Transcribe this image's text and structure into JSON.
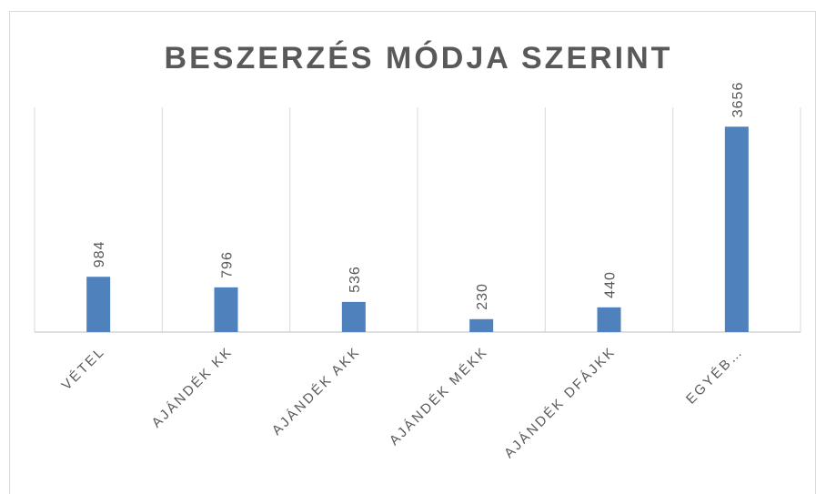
{
  "chart_data": {
    "type": "bar",
    "title": "BESZERZÉS MÓDJA SZERINT",
    "categories": [
      "VÉTEL",
      "AJÁNDÉK KK",
      "AJÁNDÉK AKK",
      "AJÁNDÉK MÉKK",
      "AJÁNDÉK DFÁJKK",
      "EGYÉB…"
    ],
    "values": [
      984,
      796,
      536,
      230,
      440,
      3656
    ],
    "color": "#4f81bd",
    "ylim": [
      0,
      4000
    ],
    "data_labels": true
  }
}
